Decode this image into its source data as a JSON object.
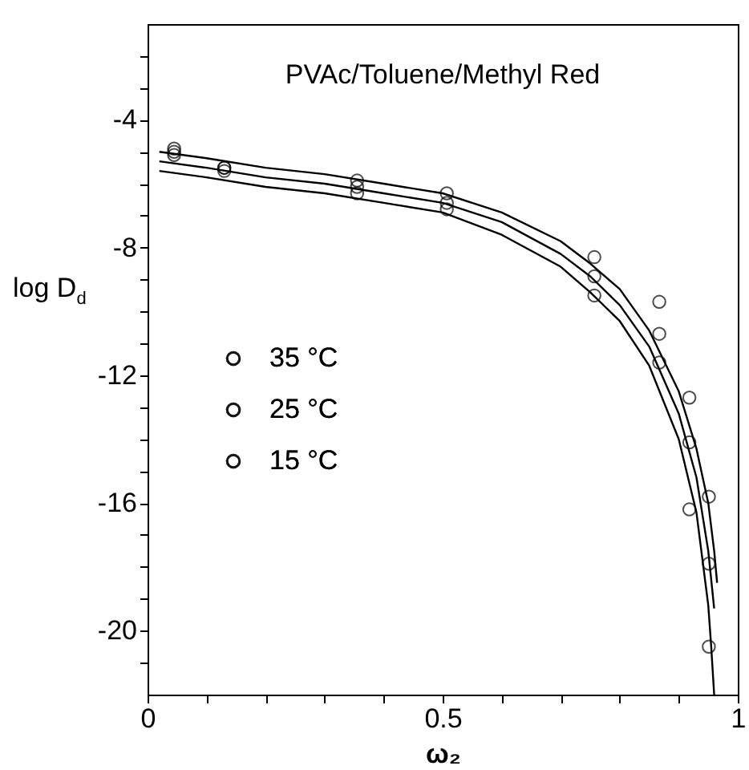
{
  "chart_data": {
    "type": "scatter",
    "title": "PVAc/Toluene/Methyl Red",
    "xlabel": "ω₂",
    "ylabel": "log D$_{d}$",
    "xlim": [
      0,
      1
    ],
    "ylim": [
      -22,
      -1
    ],
    "xticks": [
      0,
      {
        "value": 0.1,
        "label": null
      },
      {
        "value": 0.2,
        "label": null
      },
      {
        "value": 0.3,
        "label": null
      },
      {
        "value": 0.4,
        "label": null
      },
      0.5,
      {
        "value": 0.6,
        "label": null
      },
      {
        "value": 0.7,
        "label": null
      },
      {
        "value": 0.8,
        "label": null
      },
      {
        "value": 0.9,
        "label": null
      },
      1
    ],
    "yticks": [
      {
        "value": -2,
        "label": null
      },
      {
        "value": -3,
        "label": null
      },
      -4,
      {
        "value": -5,
        "label": null
      },
      {
        "value": -6,
        "label": null
      },
      {
        "value": -7,
        "label": null
      },
      -8,
      {
        "value": -9,
        "label": null
      },
      {
        "value": -10,
        "label": null
      },
      {
        "value": -11,
        "label": null
      },
      -12,
      {
        "value": -13,
        "label": null
      },
      {
        "value": -14,
        "label": null
      },
      {
        "value": -15,
        "label": null
      },
      -16,
      {
        "value": -17,
        "label": null
      },
      {
        "value": -18,
        "label": null
      },
      {
        "value": -19,
        "label": null
      },
      -20,
      {
        "value": -21,
        "label": null
      }
    ],
    "grid": false,
    "legend": "left",
    "marker": "circle",
    "series": [
      {
        "name": "35 °C",
        "color": "#000000",
        "x": [
          0.045,
          0.13,
          0.355,
          0.507,
          0.757,
          0.867,
          0.918,
          0.951
        ],
        "values": [
          -4.9,
          -5.5,
          -5.9,
          -6.3,
          -8.3,
          -9.7,
          -12.7,
          -15.8
        ]
      },
      {
        "name": "25 °C",
        "color": "#000000",
        "x": [
          0.045,
          0.13,
          0.355,
          0.507,
          0.757,
          0.867,
          0.918,
          0.951
        ],
        "values": [
          -5.0,
          -5.5,
          -6.1,
          -6.6,
          -8.9,
          -10.7,
          -14.1,
          -17.9
        ]
      },
      {
        "name": "15 °C",
        "color": "#000000",
        "x": [
          0.045,
          0.13,
          0.355,
          0.507,
          0.757,
          0.867,
          0.918,
          0.951
        ],
        "values": [
          -5.1,
          -5.6,
          -6.3,
          -6.8,
          -9.5,
          -11.6,
          -16.2,
          -20.5
        ]
      },
      {
        "type": "line",
        "marker": "none",
        "color": "#000000",
        "x": [
          0.02,
          0.1,
          0.2,
          0.3,
          0.4,
          0.5,
          0.6,
          0.7,
          0.75,
          0.8,
          0.85,
          0.9,
          0.93,
          0.95,
          0.96,
          0.965
        ],
        "values": [
          -5.0,
          -5.2,
          -5.5,
          -5.7,
          -6.0,
          -6.3,
          -6.9,
          -7.8,
          -8.5,
          -9.3,
          -10.6,
          -12.5,
          -14.3,
          -16.0,
          -17.5,
          -18.5
        ]
      },
      {
        "type": "line",
        "marker": "none",
        "color": "#000000",
        "x": [
          0.02,
          0.1,
          0.2,
          0.3,
          0.4,
          0.5,
          0.6,
          0.7,
          0.75,
          0.8,
          0.85,
          0.9,
          0.93,
          0.95,
          0.96
        ],
        "values": [
          -5.3,
          -5.5,
          -5.8,
          -6.0,
          -6.3,
          -6.6,
          -7.2,
          -8.2,
          -8.9,
          -9.8,
          -11.1,
          -13.2,
          -15.2,
          -17.5,
          -19.3
        ]
      },
      {
        "type": "line",
        "marker": "none",
        "color": "#000000",
        "x": [
          0.02,
          0.1,
          0.2,
          0.3,
          0.4,
          0.5,
          0.6,
          0.7,
          0.75,
          0.8,
          0.85,
          0.9,
          0.93,
          0.95,
          0.955,
          0.96
        ],
        "values": [
          -5.6,
          -5.8,
          -6.1,
          -6.3,
          -6.6,
          -6.9,
          -7.6,
          -8.6,
          -9.4,
          -10.3,
          -11.7,
          -14.0,
          -16.3,
          -19.2,
          -20.5,
          -22.0
        ]
      }
    ]
  }
}
